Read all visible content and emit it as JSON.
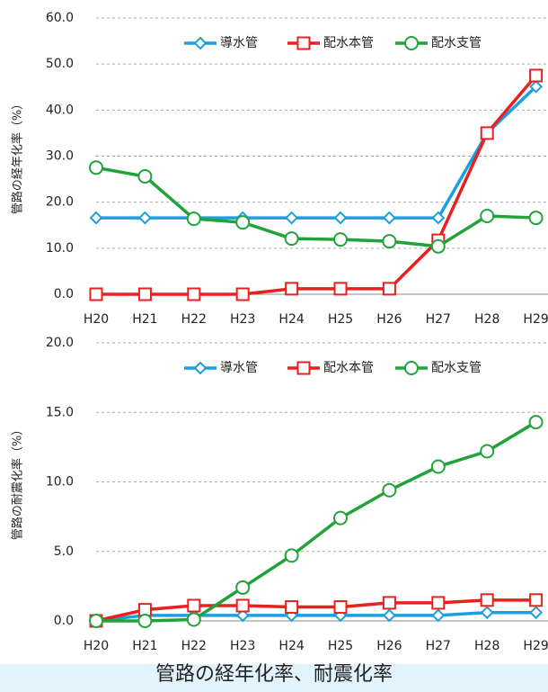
{
  "chart_data": [
    {
      "type": "line",
      "ylabel": "管路の経年化率（%）",
      "categories": [
        "H20",
        "H21",
        "H22",
        "H23",
        "H24",
        "H25",
        "H26",
        "H27",
        "H28",
        "H29"
      ],
      "ylim": [
        0,
        60
      ],
      "yticks": [
        {
          "value": 0,
          "label": "0.0"
        },
        {
          "value": 10,
          "label": "10.0"
        },
        {
          "value": 20,
          "label": "20.0"
        },
        {
          "value": 30,
          "label": "30.0"
        },
        {
          "value": 40,
          "label": "40.0"
        },
        {
          "value": 50,
          "label": "50.0"
        },
        {
          "value": 60,
          "label": "60.0"
        }
      ],
      "grid": true,
      "legend": "top",
      "series": [
        {
          "name": "導水管",
          "color": "#1a9fe0",
          "marker": "diamond",
          "values": [
            16.6,
            16.6,
            16.6,
            16.6,
            16.6,
            16.6,
            16.6,
            16.6,
            35.0,
            45.1
          ]
        },
        {
          "name": "配水本管",
          "color": "#e8201f",
          "marker": "square",
          "values": [
            0,
            0,
            0,
            0,
            1.2,
            1.2,
            1.2,
            11.7,
            35.0,
            47.5
          ]
        },
        {
          "name": "配水支管",
          "color": "#22a33a",
          "marker": "circle",
          "values": [
            27.5,
            25.6,
            16.4,
            15.6,
            12.1,
            11.9,
            11.5,
            10.4,
            17.0,
            16.6
          ]
        }
      ]
    },
    {
      "type": "line",
      "ylabel": "管路の耐震化率（%）",
      "categories": [
        "H20",
        "H21",
        "H22",
        "H23",
        "H24",
        "H25",
        "H26",
        "H27",
        "H28",
        "H29"
      ],
      "ylim": [
        0,
        20
      ],
      "yticks": [
        {
          "value": 0,
          "label": "0.0"
        },
        {
          "value": 5,
          "label": "5.0"
        },
        {
          "value": 10,
          "label": "10.0"
        },
        {
          "value": 15,
          "label": "15.0"
        },
        {
          "value": 20,
          "label": "20.0"
        }
      ],
      "grid": true,
      "legend": "top",
      "series": [
        {
          "name": "導水管",
          "color": "#1a9fe0",
          "marker": "diamond",
          "values": [
            0,
            0.4,
            0.4,
            0.4,
            0.4,
            0.4,
            0.4,
            0.4,
            0.6,
            0.6
          ]
        },
        {
          "name": "配水本管",
          "color": "#e8201f",
          "marker": "square",
          "values": [
            0,
            0.8,
            1.1,
            1.1,
            1.0,
            1.0,
            1.3,
            1.3,
            1.5,
            1.5
          ]
        },
        {
          "name": "配水支管",
          "color": "#22a33a",
          "marker": "circle",
          "values": [
            0,
            0,
            0.1,
            2.4,
            4.7,
            7.4,
            9.4,
            11.1,
            12.2,
            14.3
          ]
        }
      ]
    }
  ],
  "caption": "管路の経年化率、耐震化率"
}
